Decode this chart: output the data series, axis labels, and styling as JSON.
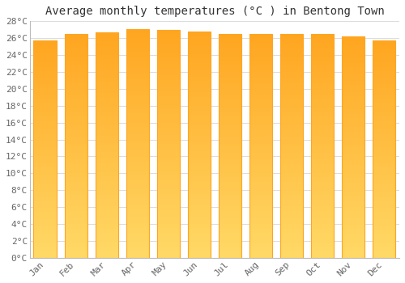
{
  "title": "Average monthly temperatures (°C ) in Bentong Town",
  "months": [
    "Jan",
    "Feb",
    "Mar",
    "Apr",
    "May",
    "Jun",
    "Jul",
    "Aug",
    "Sep",
    "Oct",
    "Nov",
    "Dec"
  ],
  "temperatures": [
    25.7,
    26.5,
    26.7,
    27.1,
    27.0,
    26.8,
    26.5,
    26.5,
    26.5,
    26.5,
    26.2,
    25.7
  ],
  "bar_color_light": "#FFD966",
  "bar_color_dark": "#FFA520",
  "background_color": "#FFFFFF",
  "plot_bg_color": "#FFFFFF",
  "grid_color": "#DDDDDD",
  "ylim": [
    0,
    28
  ],
  "ytick_step": 2,
  "title_fontsize": 10,
  "tick_fontsize": 8,
  "bar_width": 0.75,
  "spine_color": "#BBBBBB"
}
